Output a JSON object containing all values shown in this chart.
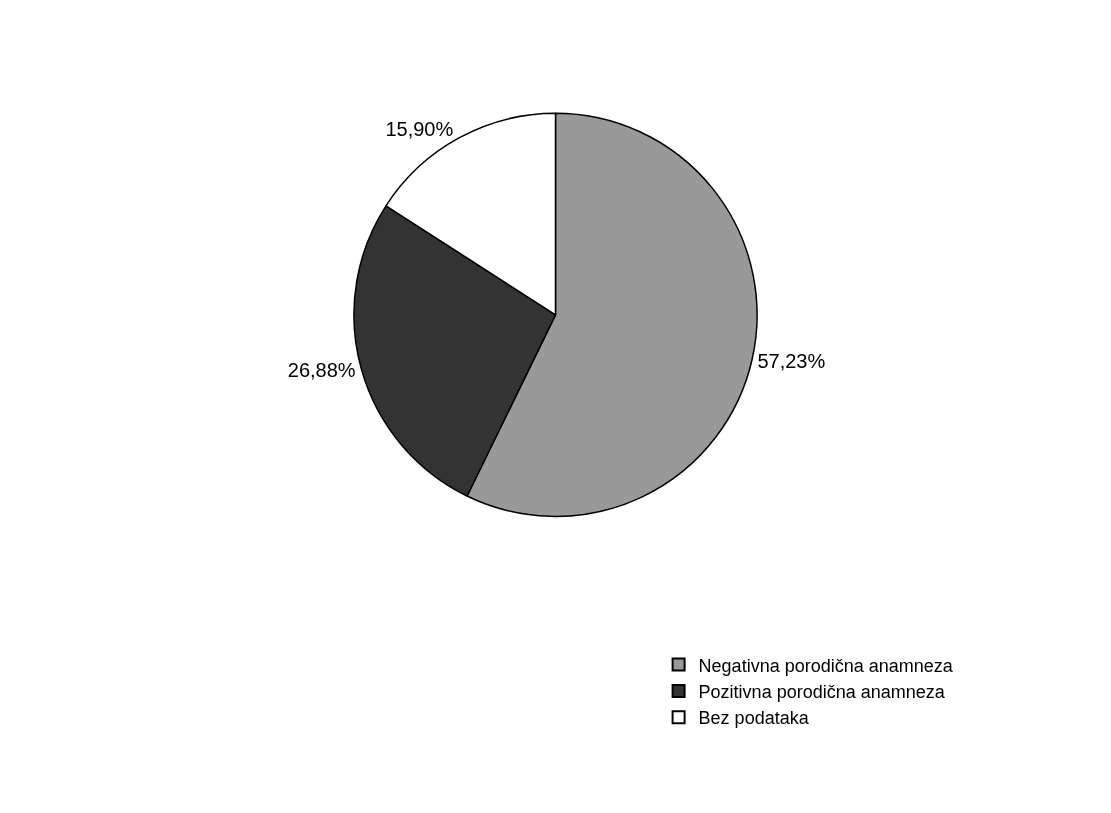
{
  "chart_data": {
    "type": "pie",
    "categories": [
      "Negativna porodična anamneza",
      "Pozitivna porodična anamneza",
      "Bez podataka"
    ],
    "values": [
      57.23,
      26.88,
      15.9
    ],
    "colors": [
      "#999999",
      "#333333",
      "#ffffff"
    ],
    "value_labels": [
      "57,23%",
      "26,88%",
      "15,90%"
    ],
    "legend": "bottom right"
  }
}
